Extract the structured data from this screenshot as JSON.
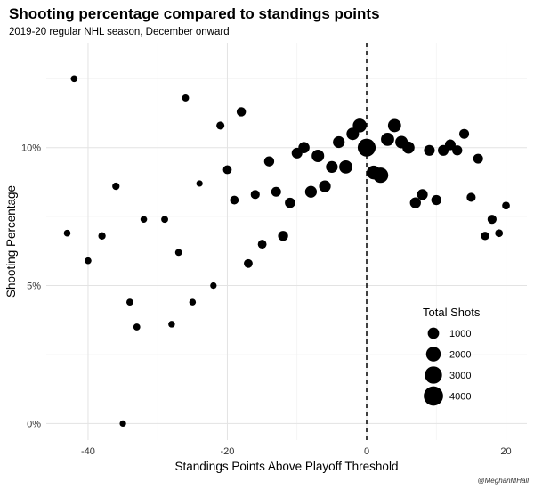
{
  "title": "Shooting percentage compared to standings points",
  "subtitle": "2019-20 regular NHL season, December onward",
  "credit": "@MeghanMHall",
  "chart_data": {
    "type": "scatter",
    "xlabel": "Standings Points Above Playoff Threshold",
    "ylabel": "Shooting Percentage",
    "xlim": [
      -46,
      23
    ],
    "ylim": [
      -0.6,
      13.8
    ],
    "x_ticks": [
      -40,
      -20,
      0,
      20
    ],
    "x_tick_labels": [
      "-40",
      "-20",
      "0",
      "20"
    ],
    "y_ticks": [
      0,
      5,
      10
    ],
    "y_tick_labels": [
      "0%",
      "5%",
      "10%"
    ],
    "grid": true,
    "reference_line": {
      "x": 0,
      "style": "dashed"
    },
    "legend": {
      "title": "Total Shots",
      "position": "right",
      "entries": [
        {
          "label": "1000",
          "size": 1000
        },
        {
          "label": "2000",
          "size": 2000
        },
        {
          "label": "3000",
          "size": 3000
        },
        {
          "label": "4000",
          "size": 4000
        }
      ]
    },
    "points": [
      {
        "x": -42,
        "y": 12.5,
        "shots": 180
      },
      {
        "x": -43,
        "y": 6.9,
        "shots": 180
      },
      {
        "x": -40,
        "y": 5.9,
        "shots": 180
      },
      {
        "x": -38,
        "y": 6.8,
        "shots": 250
      },
      {
        "x": -36,
        "y": 8.6,
        "shots": 250
      },
      {
        "x": -35,
        "y": 0.0,
        "shots": 150
      },
      {
        "x": -34,
        "y": 4.4,
        "shots": 200
      },
      {
        "x": -33,
        "y": 3.5,
        "shots": 200
      },
      {
        "x": -32,
        "y": 7.4,
        "shots": 170
      },
      {
        "x": -29,
        "y": 7.4,
        "shots": 200
      },
      {
        "x": -28,
        "y": 3.6,
        "shots": 170
      },
      {
        "x": -27,
        "y": 6.2,
        "shots": 200
      },
      {
        "x": -26,
        "y": 11.8,
        "shots": 200
      },
      {
        "x": -25,
        "y": 4.4,
        "shots": 170
      },
      {
        "x": -24,
        "y": 8.7,
        "shots": 140
      },
      {
        "x": -22,
        "y": 5.0,
        "shots": 150
      },
      {
        "x": -21,
        "y": 10.8,
        "shots": 350
      },
      {
        "x": -20,
        "y": 9.2,
        "shots": 450
      },
      {
        "x": -19,
        "y": 8.1,
        "shots": 450
      },
      {
        "x": -18,
        "y": 11.3,
        "shots": 550
      },
      {
        "x": -17,
        "y": 5.8,
        "shots": 450
      },
      {
        "x": -16,
        "y": 8.3,
        "shots": 500
      },
      {
        "x": -15,
        "y": 6.5,
        "shots": 450
      },
      {
        "x": -14,
        "y": 9.5,
        "shots": 700
      },
      {
        "x": -13,
        "y": 8.4,
        "shots": 650
      },
      {
        "x": -12,
        "y": 6.8,
        "shots": 700
      },
      {
        "x": -11,
        "y": 8.0,
        "shots": 750
      },
      {
        "x": -10,
        "y": 9.8,
        "shots": 850
      },
      {
        "x": -9,
        "y": 10.0,
        "shots": 950
      },
      {
        "x": -8,
        "y": 8.4,
        "shots": 1100
      },
      {
        "x": -7,
        "y": 9.7,
        "shots": 1300
      },
      {
        "x": -6,
        "y": 8.6,
        "shots": 1100
      },
      {
        "x": -5,
        "y": 9.3,
        "shots": 1100
      },
      {
        "x": -4,
        "y": 10.2,
        "shots": 1100
      },
      {
        "x": -3,
        "y": 9.3,
        "shots": 1500
      },
      {
        "x": -2,
        "y": 10.5,
        "shots": 1300
      },
      {
        "x": -1,
        "y": 10.8,
        "shots": 1700
      },
      {
        "x": 0,
        "y": 10.0,
        "shots": 3300
      },
      {
        "x": 1,
        "y": 9.1,
        "shots": 1700
      },
      {
        "x": 2,
        "y": 9.0,
        "shots": 2200
      },
      {
        "x": 3,
        "y": 10.3,
        "shots": 1500
      },
      {
        "x": 4,
        "y": 10.8,
        "shots": 1500
      },
      {
        "x": 5,
        "y": 10.2,
        "shots": 1300
      },
      {
        "x": 6,
        "y": 10.0,
        "shots": 1200
      },
      {
        "x": 7,
        "y": 8.0,
        "shots": 900
      },
      {
        "x": 8,
        "y": 8.3,
        "shots": 850
      },
      {
        "x": 9,
        "y": 9.9,
        "shots": 850
      },
      {
        "x": 10,
        "y": 8.1,
        "shots": 700
      },
      {
        "x": 11,
        "y": 9.9,
        "shots": 850
      },
      {
        "x": 12,
        "y": 10.1,
        "shots": 850
      },
      {
        "x": 13,
        "y": 9.9,
        "shots": 700
      },
      {
        "x": 14,
        "y": 10.5,
        "shots": 650
      },
      {
        "x": 15,
        "y": 8.2,
        "shots": 500
      },
      {
        "x": 16,
        "y": 9.6,
        "shots": 650
      },
      {
        "x": 17,
        "y": 6.8,
        "shots": 400
      },
      {
        "x": 18,
        "y": 7.4,
        "shots": 500
      },
      {
        "x": 19,
        "y": 6.9,
        "shots": 300
      },
      {
        "x": 20,
        "y": 7.9,
        "shots": 300
      }
    ]
  }
}
